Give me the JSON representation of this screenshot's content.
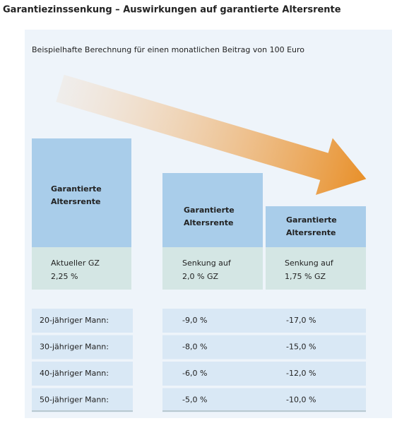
{
  "header": {
    "title": "Garantiezinssenkung – Auswirkungen auf garantierte Altersrente",
    "subtitle": "Beispielhafte Berechnung für einen monatlichen Beitrag von 100 Euro"
  },
  "columns": [
    {
      "label": [
        "Garantierte",
        "Altersrente"
      ],
      "rate": [
        "Aktueller GZ",
        "2,25 %"
      ]
    },
    {
      "label": [
        "Garantierte",
        "Altersrente"
      ],
      "rate": [
        "Senkung auf",
        "2,0 % GZ"
      ]
    },
    {
      "label": [
        "Garantierte",
        "Altersrente"
      ],
      "rate": [
        "Senkung auf",
        "1,75 % GZ"
      ]
    }
  ],
  "table": {
    "rows": [
      [
        "20-jähriger Mann:",
        "-9,0 %",
        "-17,0 %"
      ],
      [
        "30-jähriger Mann:",
        "-8,0 %",
        "-15,0 %"
      ],
      [
        "40-jähriger Mann:",
        "-6,0 %",
        "-12,0 %"
      ],
      [
        "50-jähriger Mann:",
        "-5,0 %",
        "-10,0 %"
      ]
    ]
  }
}
